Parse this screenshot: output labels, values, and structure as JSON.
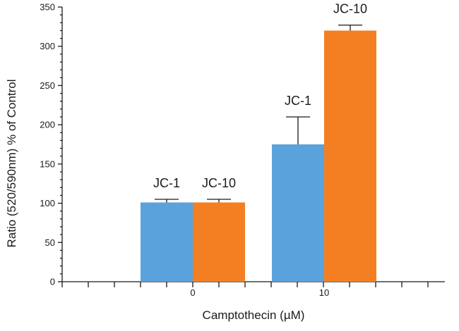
{
  "chart_data": {
    "type": "bar",
    "title": "",
    "xlabel": "Camptothecin (µM)",
    "ylabel": "Ratio (520/590nm) % of Control",
    "ylim": [
      0,
      350
    ],
    "yticks": [
      0,
      50,
      100,
      150,
      200,
      250,
      300,
      350
    ],
    "categories": [
      "0",
      "10"
    ],
    "series": [
      {
        "name": "JC-1",
        "values": [
          101,
          175
        ],
        "errors": [
          4,
          35
        ],
        "color": "#5aa2dc"
      },
      {
        "name": "JC-10",
        "values": [
          101,
          320
        ],
        "errors": [
          4,
          7
        ],
        "color": "#f37f22"
      }
    ],
    "grid": false,
    "legend": "none"
  }
}
